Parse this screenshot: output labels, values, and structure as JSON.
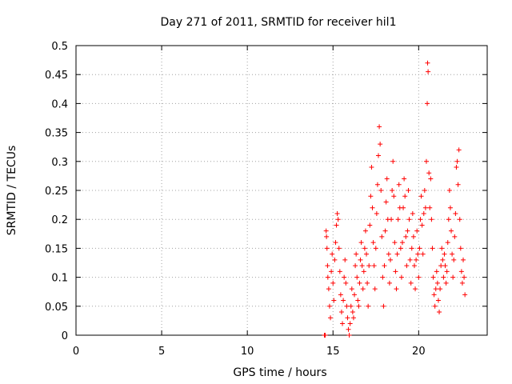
{
  "chart_data": {
    "type": "scatter",
    "title": "Day 271 of 2011, SRMTID for receiver hil1",
    "xlabel": "GPS time / hours",
    "ylabel": "SRMTID / TECUs",
    "xlim": [
      0,
      24
    ],
    "ylim": [
      0,
      0.5
    ],
    "x_ticks": [
      "0",
      "5",
      "10",
      "15",
      "20"
    ],
    "y_ticks": [
      "0",
      "0.05",
      "0.1",
      "0.15",
      "0.2",
      "0.25",
      "0.3",
      "0.35",
      "0.4",
      "0.45",
      "0.5"
    ],
    "grid": true,
    "marker": "plus",
    "series_color": "#ff0000",
    "series": [
      {
        "points": [
          [
            14.5,
            0.0
          ],
          [
            14.55,
            0.0
          ],
          [
            14.6,
            0.18
          ],
          [
            14.62,
            0.17
          ],
          [
            14.65,
            0.15
          ],
          [
            14.68,
            0.12
          ],
          [
            14.7,
            0.1
          ],
          [
            14.75,
            0.08
          ],
          [
            14.8,
            0.05
          ],
          [
            14.85,
            0.03
          ],
          [
            14.9,
            0.11
          ],
          [
            14.95,
            0.14
          ],
          [
            15.0,
            0.09
          ],
          [
            15.05,
            0.06
          ],
          [
            15.1,
            0.13
          ],
          [
            15.15,
            0.16
          ],
          [
            15.2,
            0.19
          ],
          [
            15.25,
            0.21
          ],
          [
            15.3,
            0.2
          ],
          [
            15.35,
            0.15
          ],
          [
            15.4,
            0.11
          ],
          [
            15.45,
            0.07
          ],
          [
            15.5,
            0.04
          ],
          [
            15.55,
            0.02
          ],
          [
            15.6,
            0.06
          ],
          [
            15.65,
            0.1
          ],
          [
            15.7,
            0.13
          ],
          [
            15.75,
            0.09
          ],
          [
            15.8,
            0.05
          ],
          [
            15.85,
            0.03
          ],
          [
            15.9,
            0.01
          ],
          [
            15.95,
            0.0
          ],
          [
            16.0,
            0.02
          ],
          [
            16.05,
            0.05
          ],
          [
            16.1,
            0.08
          ],
          [
            16.15,
            0.04
          ],
          [
            16.2,
            0.03
          ],
          [
            16.25,
            0.07
          ],
          [
            16.3,
            0.12
          ],
          [
            16.35,
            0.14
          ],
          [
            16.4,
            0.1
          ],
          [
            16.45,
            0.06
          ],
          [
            16.5,
            0.05
          ],
          [
            16.55,
            0.09
          ],
          [
            16.6,
            0.13
          ],
          [
            16.65,
            0.16
          ],
          [
            16.7,
            0.12
          ],
          [
            16.75,
            0.08
          ],
          [
            16.8,
            0.11
          ],
          [
            16.85,
            0.15
          ],
          [
            16.9,
            0.18
          ],
          [
            16.95,
            0.14
          ],
          [
            17.0,
            0.09
          ],
          [
            17.05,
            0.05
          ],
          [
            17.1,
            0.12
          ],
          [
            17.15,
            0.19
          ],
          [
            17.2,
            0.24
          ],
          [
            17.25,
            0.29
          ],
          [
            17.3,
            0.22
          ],
          [
            17.35,
            0.16
          ],
          [
            17.4,
            0.12
          ],
          [
            17.45,
            0.08
          ],
          [
            17.5,
            0.15
          ],
          [
            17.55,
            0.21
          ],
          [
            17.6,
            0.26
          ],
          [
            17.65,
            0.31
          ],
          [
            17.7,
            0.36
          ],
          [
            17.75,
            0.33
          ],
          [
            17.8,
            0.25
          ],
          [
            17.85,
            0.17
          ],
          [
            17.9,
            0.1
          ],
          [
            17.95,
            0.05
          ],
          [
            18.0,
            0.12
          ],
          [
            18.05,
            0.18
          ],
          [
            18.1,
            0.23
          ],
          [
            18.15,
            0.27
          ],
          [
            18.2,
            0.2
          ],
          [
            18.25,
            0.14
          ],
          [
            18.3,
            0.09
          ],
          [
            18.35,
            0.13
          ],
          [
            18.4,
            0.2
          ],
          [
            18.45,
            0.25
          ],
          [
            18.5,
            0.3
          ],
          [
            18.55,
            0.24
          ],
          [
            18.6,
            0.16
          ],
          [
            18.65,
            0.11
          ],
          [
            18.7,
            0.08
          ],
          [
            18.75,
            0.14
          ],
          [
            18.8,
            0.2
          ],
          [
            18.85,
            0.26
          ],
          [
            18.9,
            0.22
          ],
          [
            18.95,
            0.15
          ],
          [
            19.0,
            0.1
          ],
          [
            19.05,
            0.16
          ],
          [
            19.1,
            0.22
          ],
          [
            19.15,
            0.27
          ],
          [
            19.2,
            0.24
          ],
          [
            19.25,
            0.17
          ],
          [
            19.3,
            0.12
          ],
          [
            19.35,
            0.18
          ],
          [
            19.4,
            0.25
          ],
          [
            19.45,
            0.2
          ],
          [
            19.5,
            0.13
          ],
          [
            19.55,
            0.09
          ],
          [
            19.6,
            0.15
          ],
          [
            19.65,
            0.21
          ],
          [
            19.7,
            0.17
          ],
          [
            19.75,
            0.12
          ],
          [
            19.8,
            0.08
          ],
          [
            19.85,
            0.13
          ],
          [
            19.9,
            0.18
          ],
          [
            19.95,
            0.14
          ],
          [
            20.0,
            0.1
          ],
          [
            20.05,
            0.15
          ],
          [
            20.1,
            0.2
          ],
          [
            20.15,
            0.24
          ],
          [
            20.2,
            0.19
          ],
          [
            20.25,
            0.14
          ],
          [
            20.3,
            0.21
          ],
          [
            20.35,
            0.25
          ],
          [
            20.4,
            0.22
          ],
          [
            20.45,
            0.3
          ],
          [
            20.5,
            0.4
          ],
          [
            20.52,
            0.47
          ],
          [
            20.55,
            0.455
          ],
          [
            20.6,
            0.28
          ],
          [
            20.65,
            0.22
          ],
          [
            20.7,
            0.27
          ],
          [
            20.75,
            0.2
          ],
          [
            20.8,
            0.15
          ],
          [
            20.85,
            0.1
          ],
          [
            20.9,
            0.07
          ],
          [
            20.95,
            0.05
          ],
          [
            21.0,
            0.08
          ],
          [
            21.05,
            0.11
          ],
          [
            21.1,
            0.09
          ],
          [
            21.15,
            0.06
          ],
          [
            21.2,
            0.04
          ],
          [
            21.25,
            0.08
          ],
          [
            21.3,
            0.12
          ],
          [
            21.35,
            0.15
          ],
          [
            21.4,
            0.13
          ],
          [
            21.45,
            0.1
          ],
          [
            21.5,
            0.14
          ],
          [
            21.55,
            0.12
          ],
          [
            21.6,
            0.09
          ],
          [
            21.65,
            0.11
          ],
          [
            21.7,
            0.16
          ],
          [
            21.75,
            0.2
          ],
          [
            21.8,
            0.25
          ],
          [
            21.85,
            0.22
          ],
          [
            21.9,
            0.18
          ],
          [
            21.95,
            0.14
          ],
          [
            22.0,
            0.1
          ],
          [
            22.05,
            0.13
          ],
          [
            22.1,
            0.17
          ],
          [
            22.15,
            0.21
          ],
          [
            22.2,
            0.29
          ],
          [
            22.25,
            0.3
          ],
          [
            22.3,
            0.26
          ],
          [
            22.35,
            0.32
          ],
          [
            22.4,
            0.2
          ],
          [
            22.45,
            0.15
          ],
          [
            22.5,
            0.11
          ],
          [
            22.55,
            0.09
          ],
          [
            22.6,
            0.13
          ],
          [
            22.65,
            0.1
          ],
          [
            22.7,
            0.07
          ]
        ]
      }
    ]
  }
}
